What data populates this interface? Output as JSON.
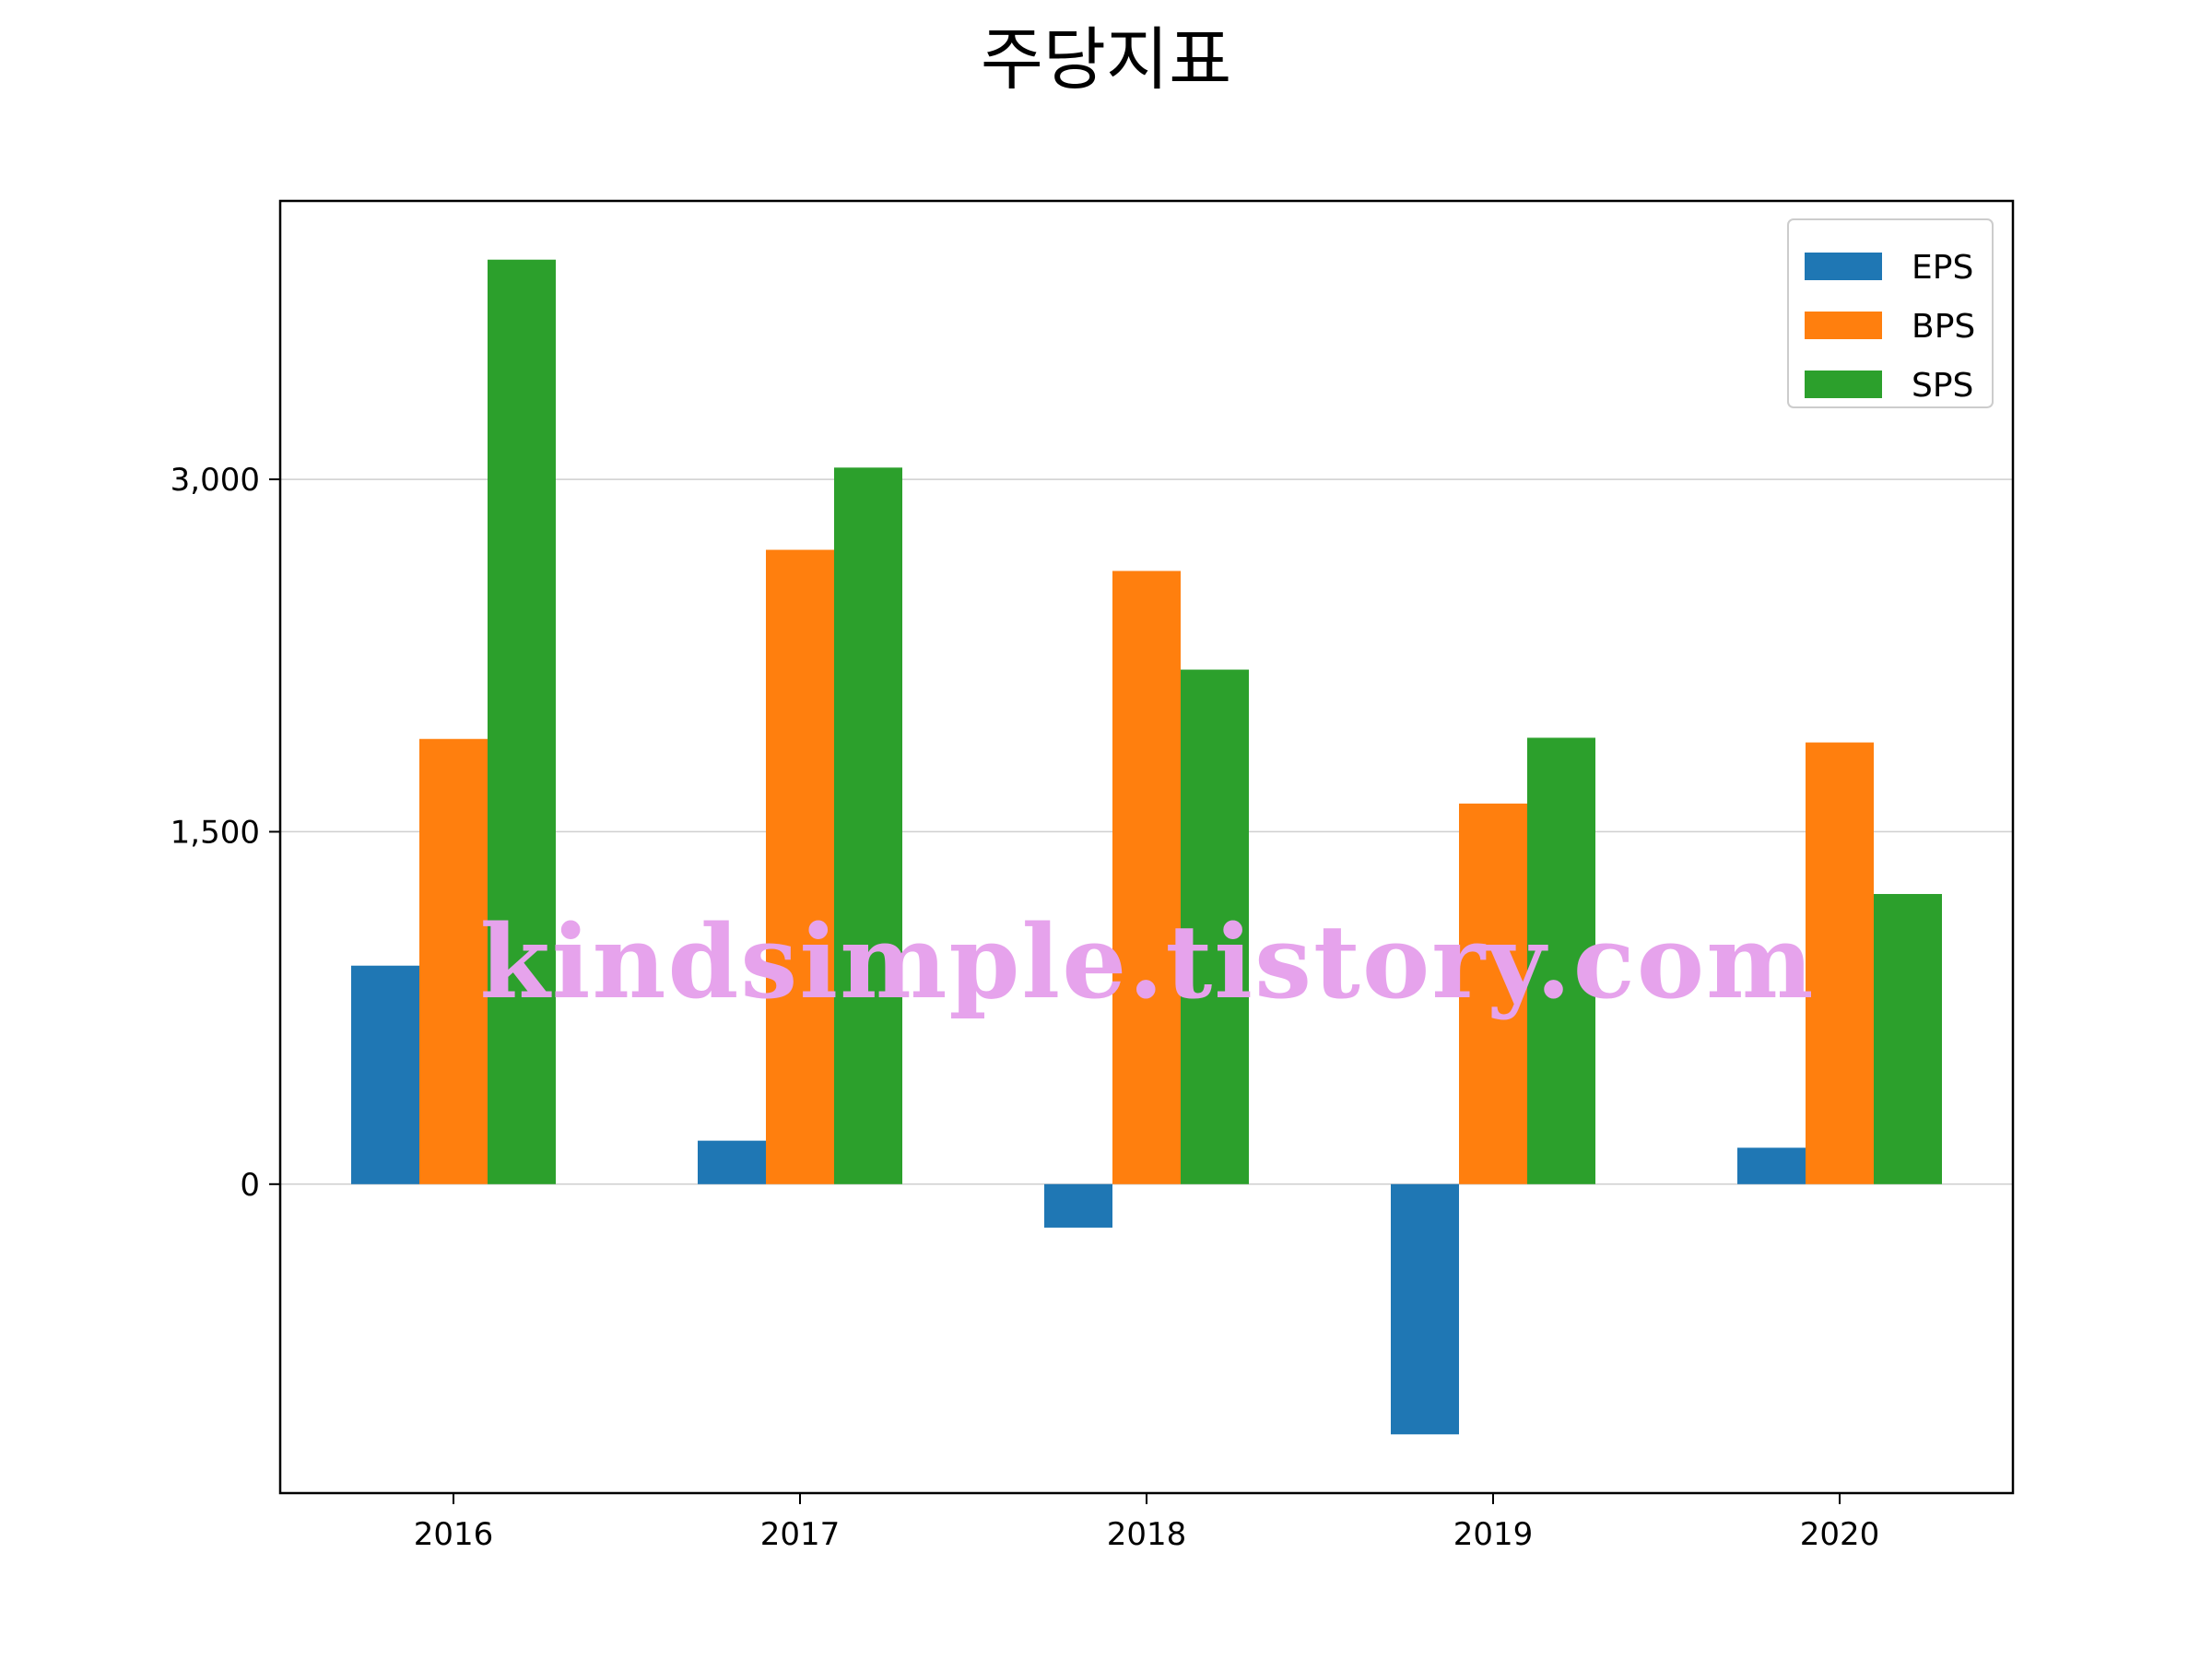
{
  "chart_data": {
    "type": "bar",
    "title": "주당지표",
    "categories": [
      "2016",
      "2017",
      "2018",
      "2019",
      "2020"
    ],
    "series": [
      {
        "name": "EPS",
        "color": "#1f77b4",
        "values": [
          930,
          185,
          -185,
          -1065,
          155
        ]
      },
      {
        "name": "BPS",
        "color": "#ff7f0e",
        "values": [
          1895,
          2700,
          2610,
          1620,
          1880
        ]
      },
      {
        "name": "SPS",
        "color": "#2ca02c",
        "values": [
          3935,
          3050,
          2190,
          1900,
          1235
        ]
      }
    ],
    "ylim": [
      -1315,
      4185
    ],
    "yticks": [
      0,
      1500,
      3000
    ],
    "ytick_labels": [
      "0",
      "1,500",
      "3,000"
    ],
    "grid": "y",
    "legend": "upper-right"
  },
  "watermark": "kindsimple.tistory.com"
}
